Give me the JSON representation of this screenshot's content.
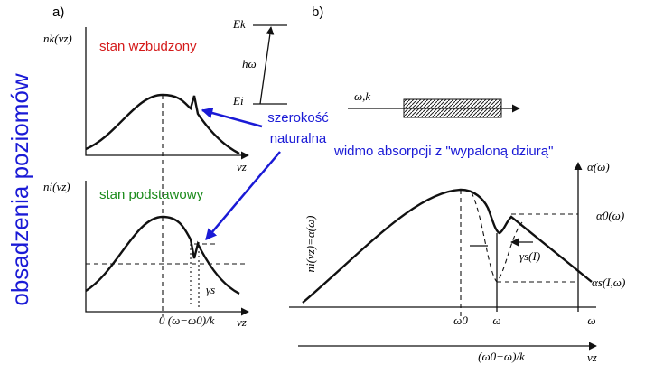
{
  "side_label": "obsadzenia poziomów",
  "panel_a": {
    "label": "a)",
    "excited": {
      "y_label": "nk(vz)",
      "x_label": "vz",
      "caption": "stan wzbudzony"
    },
    "ground": {
      "y_label": "ni(vz)",
      "x_label": "vz",
      "caption": "stan podstawowy",
      "x_tick": "0 (ω−ω0)/k",
      "width_label": "γs"
    },
    "levels": {
      "upper": "Ek",
      "lower": "Ei",
      "photon": "ħω"
    }
  },
  "natural_width": [
    "szerokość",
    "naturalna"
  ],
  "panel_b": {
    "label": "b)",
    "beam": "ω,k",
    "caption": "widmo absorpcji z \"wypaloną dziurą\"",
    "y_label": "ni(vz)=α(ω)",
    "right_axis": "α(ω)",
    "alpha0": "α0(ω)",
    "alphas": "αs(I,ω)",
    "width_label": "γs(I)",
    "x_ticks": [
      "ω0",
      "ω"
    ],
    "x_label": "ω",
    "bottom_tick": "(ω0−ω)/k",
    "bottom_label": "vz"
  }
}
